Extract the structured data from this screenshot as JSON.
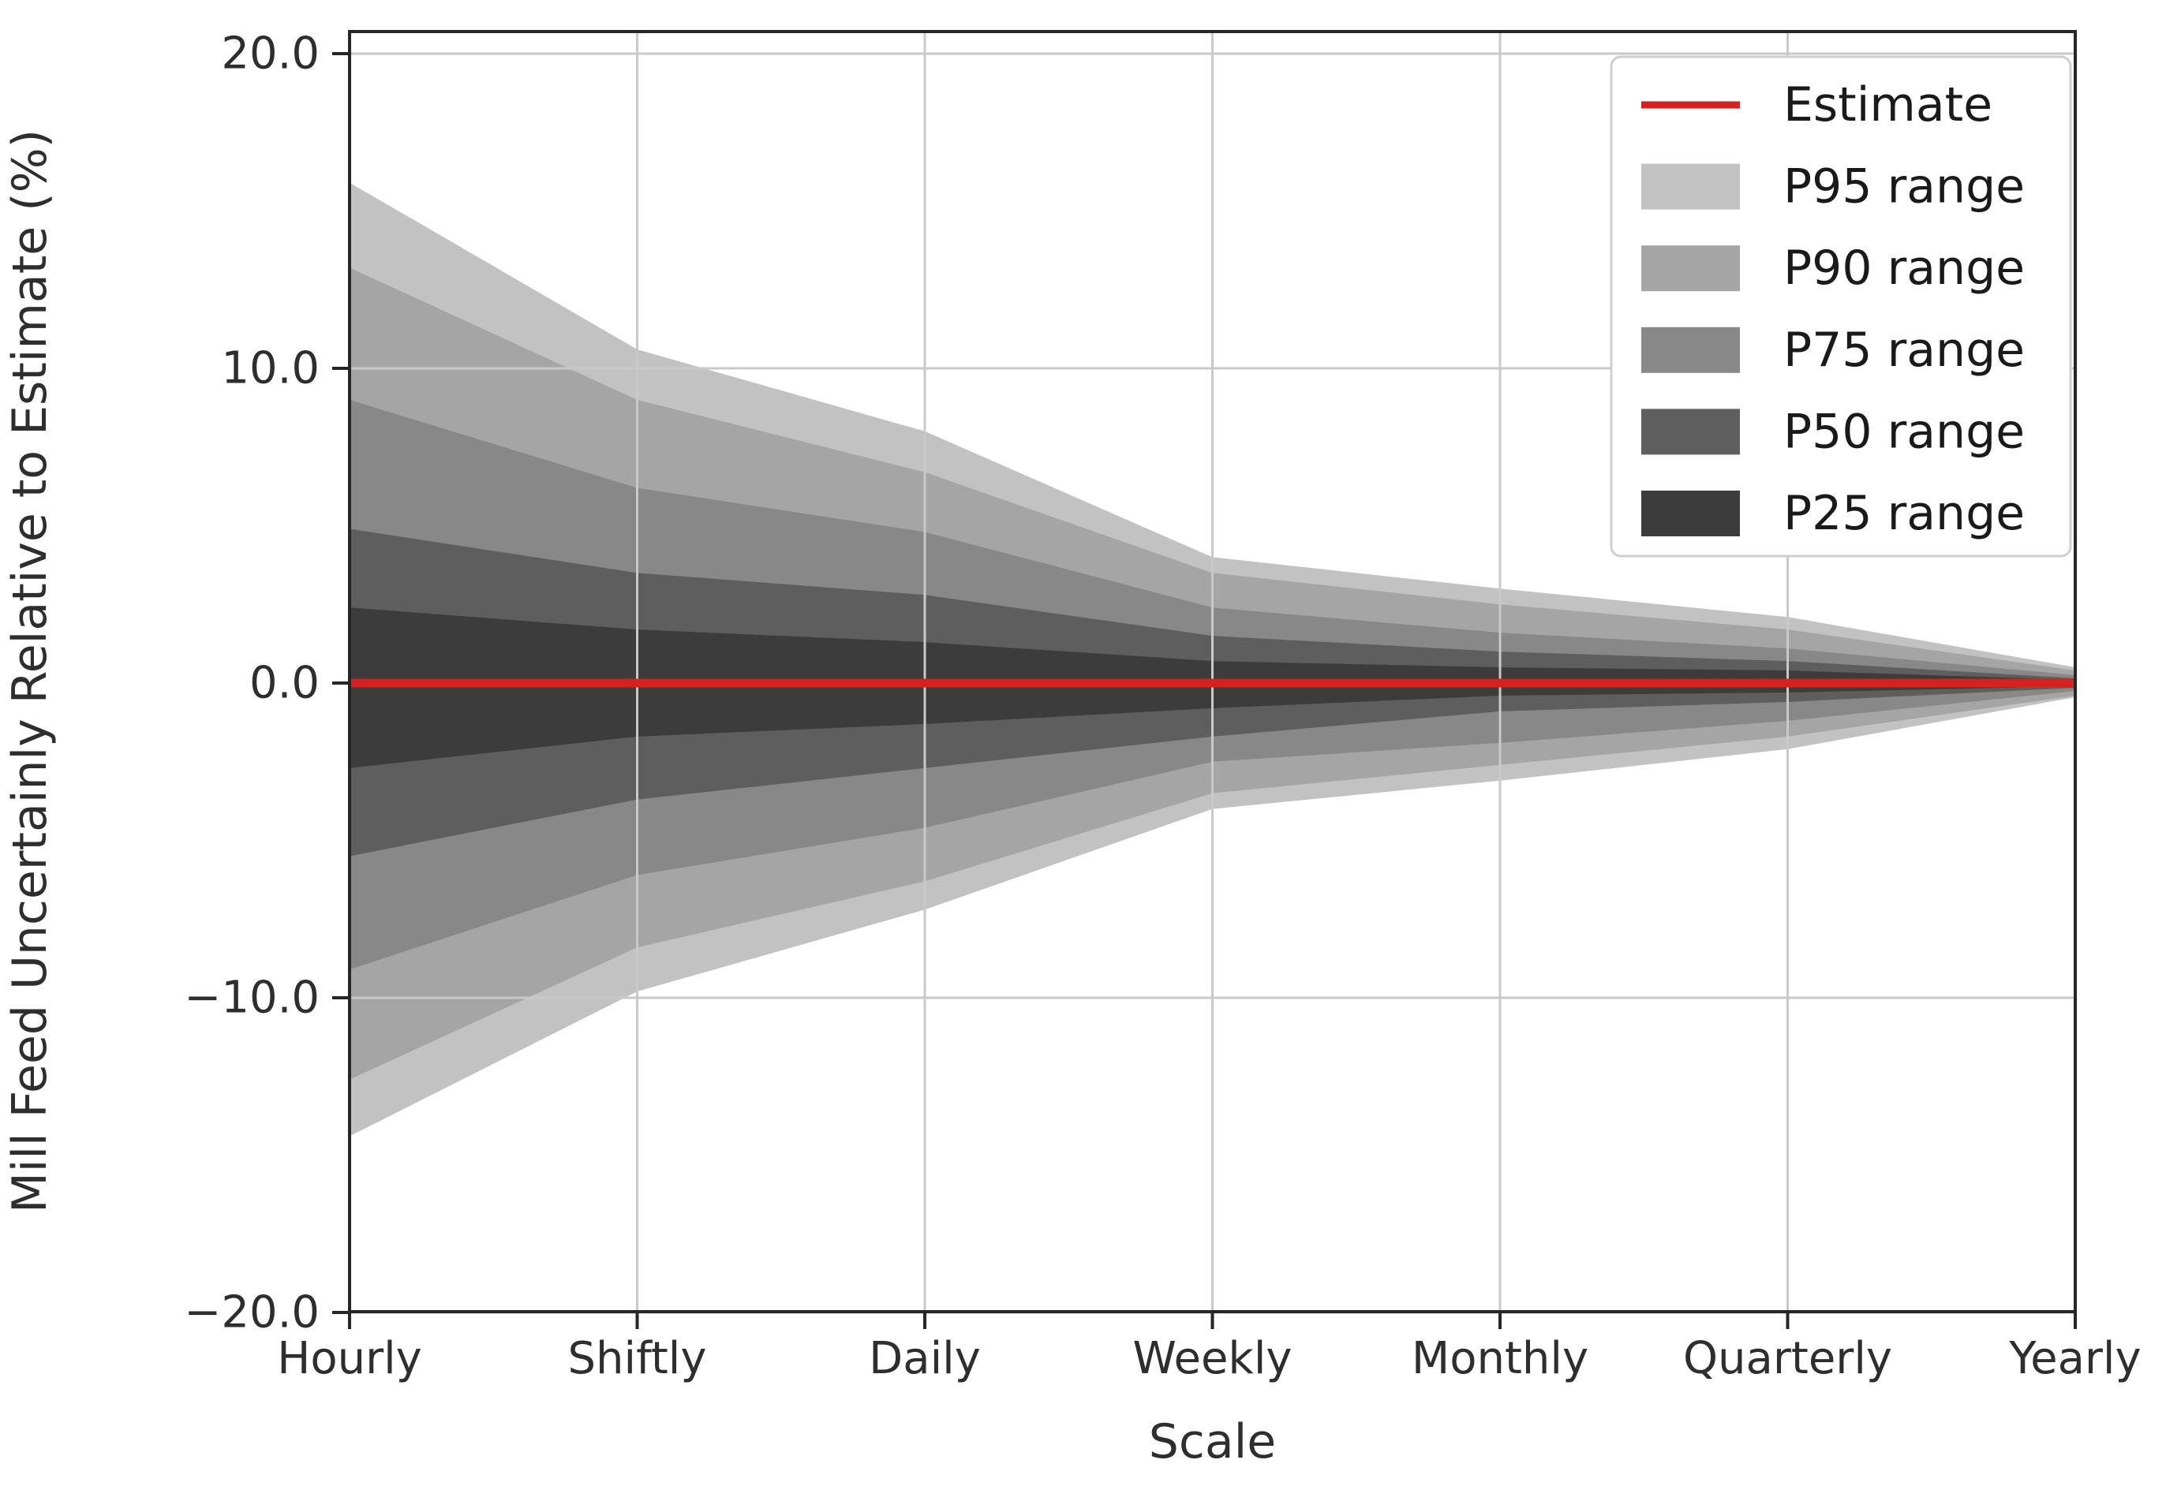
{
  "chart_data": {
    "type": "area",
    "title": "",
    "xlabel": "Scale",
    "ylabel": "Mill Feed Uncertainly Relative to Estimate (%)",
    "categories": [
      "Hourly",
      "Shiftly",
      "Daily",
      "Weekly",
      "Monthly",
      "Quarterly",
      "Yearly"
    ],
    "ylim": [
      -20.0,
      20.7
    ],
    "ytick_values": [
      20,
      10,
      0,
      -10,
      -20
    ],
    "ytick_labels": [
      "20.0",
      "10.0",
      "0.0",
      "−10.0",
      "−20.0"
    ],
    "grid": true,
    "legend_position": "upper right",
    "estimate": {
      "label": "Estimate",
      "color": "#d62121",
      "values": [
        0,
        0,
        0,
        0,
        0,
        0,
        0
      ]
    },
    "bands": [
      {
        "name": "P95 range",
        "color": "#c2c2c2",
        "upper": [
          15.9,
          10.6,
          8.0,
          4.0,
          3.0,
          2.1,
          0.5
        ],
        "lower": [
          -14.4,
          -9.8,
          -7.2,
          -4.0,
          -3.1,
          -2.1,
          -0.45
        ]
      },
      {
        "name": "P90 range",
        "color": "#a5a5a5",
        "upper": [
          13.2,
          9.0,
          6.7,
          3.5,
          2.5,
          1.7,
          0.4
        ],
        "lower": [
          -12.6,
          -8.4,
          -6.3,
          -3.5,
          -2.6,
          -1.7,
          -0.4
        ]
      },
      {
        "name": "P75 range",
        "color": "#888888",
        "upper": [
          9.0,
          6.2,
          4.8,
          2.4,
          1.6,
          1.1,
          0.25
        ],
        "lower": [
          -9.1,
          -6.1,
          -4.6,
          -2.5,
          -1.9,
          -1.2,
          -0.25
        ]
      },
      {
        "name": "P50 range",
        "color": "#5e5e5e",
        "upper": [
          4.9,
          3.5,
          2.8,
          1.5,
          1.0,
          0.7,
          0.15
        ],
        "lower": [
          -5.5,
          -3.7,
          -2.7,
          -1.7,
          -0.9,
          -0.6,
          -0.15
        ]
      },
      {
        "name": "P25 range",
        "color": "#3c3c3c",
        "upper": [
          2.4,
          1.7,
          1.3,
          0.7,
          0.5,
          0.4,
          0.1
        ],
        "lower": [
          -2.7,
          -1.7,
          -1.3,
          -0.8,
          -0.4,
          -0.3,
          -0.1
        ]
      }
    ]
  }
}
